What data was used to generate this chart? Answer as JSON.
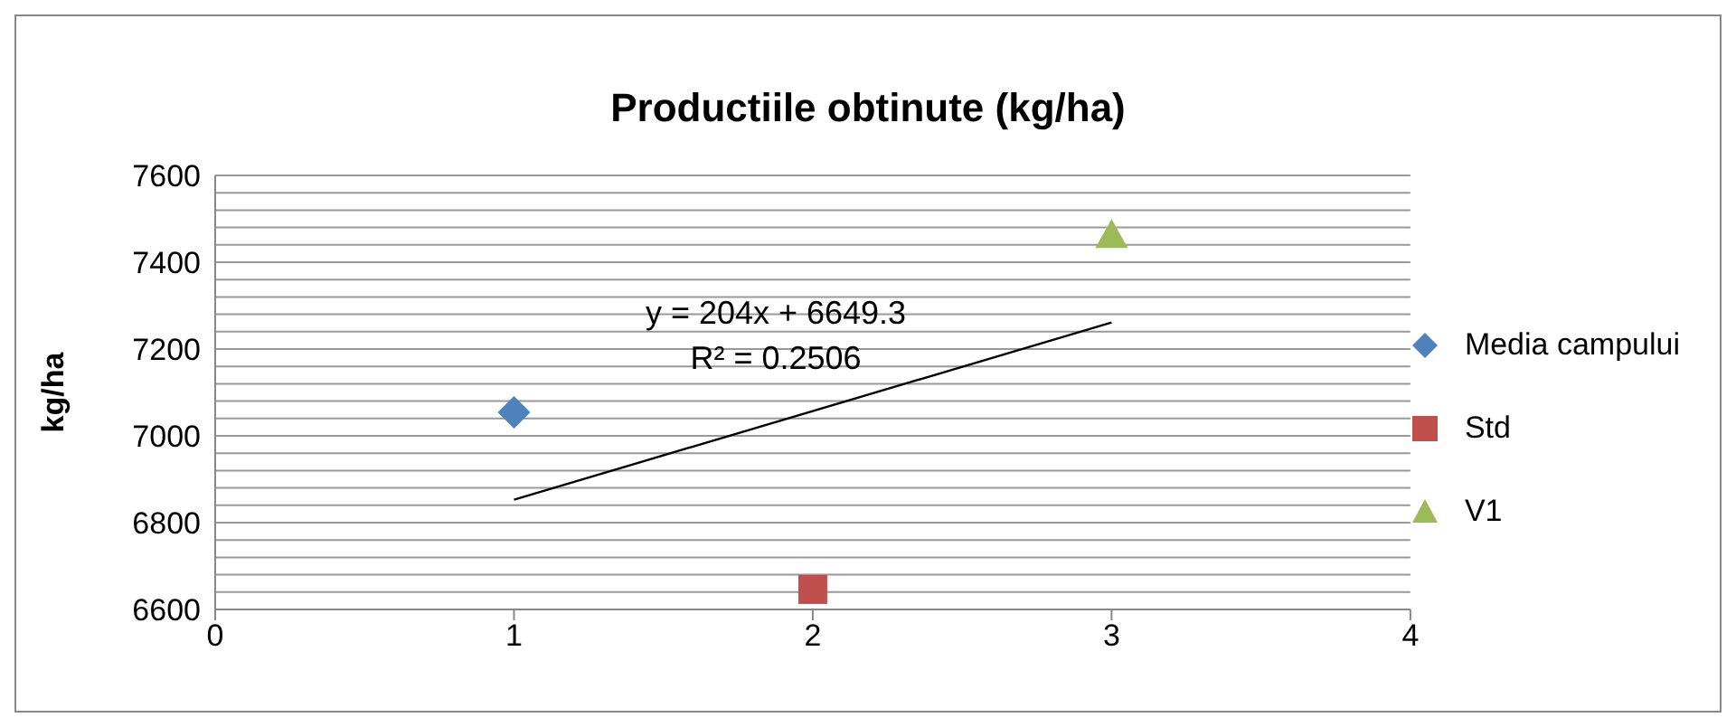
{
  "chart_data": {
    "type": "scatter",
    "title": "Productiile obtinute (kg/ha)",
    "ylabel": "kg/ha",
    "xlim": [
      0,
      4
    ],
    "xticks": [
      0,
      1,
      2,
      3,
      4
    ],
    "ylim": [
      6600,
      7600
    ],
    "yticks": [
      6600,
      {
        "value": 6640,
        "label": null
      },
      {
        "value": 6680,
        "label": null
      },
      {
        "value": 6720,
        "label": null
      },
      {
        "value": 6760,
        "label": null
      },
      6800,
      {
        "value": 6840,
        "label": null
      },
      {
        "value": 6880,
        "label": null
      },
      {
        "value": 6920,
        "label": null
      },
      {
        "value": 6960,
        "label": null
      },
      7000,
      {
        "value": 7040,
        "label": null
      },
      {
        "value": 7080,
        "label": null
      },
      {
        "value": 7120,
        "label": null
      },
      {
        "value": 7160,
        "label": null
      },
      7200,
      {
        "value": 7240,
        "label": null
      },
      {
        "value": 7280,
        "label": null
      },
      {
        "value": 7320,
        "label": null
      },
      {
        "value": 7360,
        "label": null
      },
      7400,
      {
        "value": 7440,
        "label": null
      },
      {
        "value": 7480,
        "label": null
      },
      {
        "value": 7520,
        "label": null
      },
      {
        "value": 7560,
        "label": null
      },
      7600
    ],
    "grid": "y",
    "legend": "right",
    "series": [
      {
        "name": "Media campului",
        "color": "#4f81bd",
        "marker": "diamond",
        "x": [
          1
        ],
        "values": [
          7054
        ]
      },
      {
        "name": "Std",
        "color": "#c0504d",
        "marker": "square",
        "x": [
          2
        ],
        "values": [
          6646
        ]
      },
      {
        "name": "V1",
        "color": "#9bbb59",
        "marker": "triangle",
        "x": [
          3
        ],
        "values": [
          7462
        ]
      },
      {
        "type": "line",
        "color": "#000000",
        "marker": "none",
        "x": [
          1,
          3
        ],
        "values": [
          6853,
          7261
        ]
      }
    ],
    "annotations": [
      "y = 204x + 6649.3",
      "R² = 0.2506"
    ]
  }
}
